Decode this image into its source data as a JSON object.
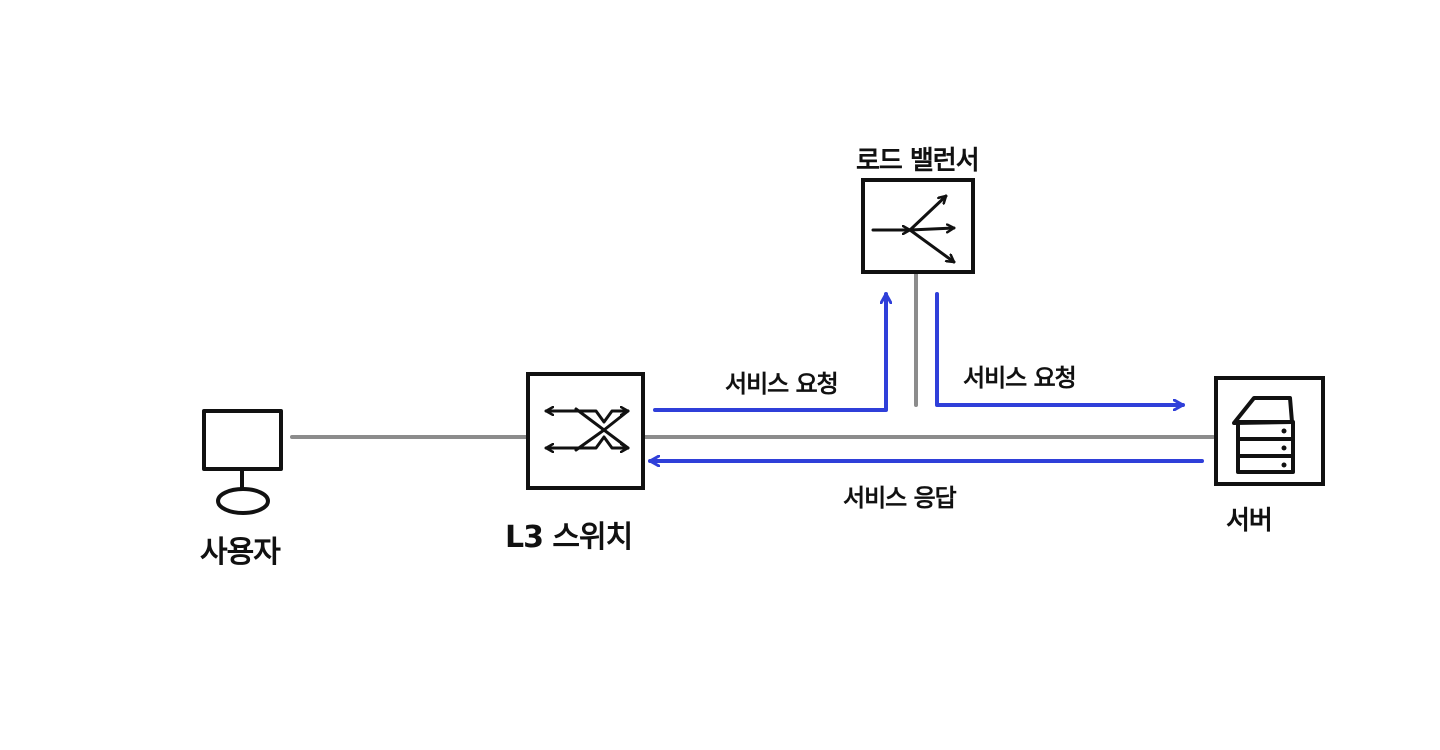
{
  "nodes": {
    "user": {
      "label": "사용자",
      "icon": "monitor-icon"
    },
    "l3_switch": {
      "label": "L3 스위치",
      "icon": "switch-icon"
    },
    "load_balancer": {
      "label": "로드 밸런서",
      "icon": "load-balancer-icon"
    },
    "server": {
      "label": "서버",
      "icon": "server-icon"
    }
  },
  "flows": {
    "request_to_lb": "서비스 요청",
    "request_to_server": "서비스 요청",
    "response": "서비스 응답"
  },
  "colors": {
    "link": "#8c8c8c",
    "flow": "#2f3fd9",
    "stroke": "#111111"
  }
}
